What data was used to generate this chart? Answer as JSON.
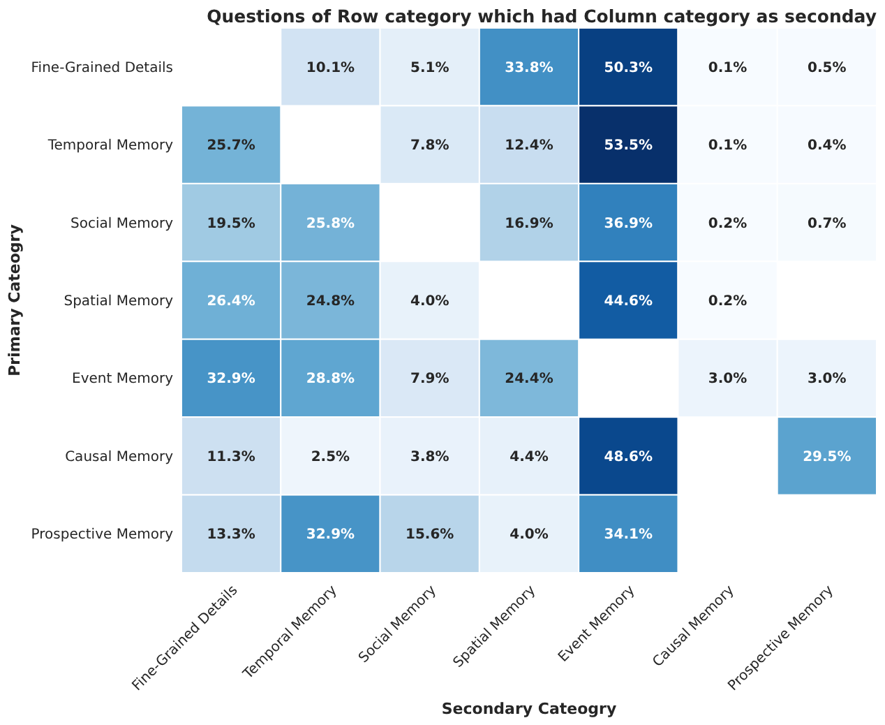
{
  "chart_data": {
    "type": "heatmap",
    "title": "Questions of Row category which had Column category as seconday",
    "xlabel": "Secondary Cateogry",
    "ylabel": "Primary Cateogry",
    "categories": [
      "Fine-Grained Details",
      "Temporal Memory",
      "Social Memory",
      "Spatial Memory",
      "Event Memory",
      "Causal Memory",
      "Prospective Memory"
    ],
    "y_categories": [
      "Fine-Grained Details",
      "Temporal Memory",
      "Social Memory",
      "Spatial Memory",
      "Event Memory",
      "Causal Memory",
      "Prospective Memory"
    ],
    "cells": [
      [
        null,
        10.1,
        5.1,
        33.8,
        50.3,
        0.1,
        0.5
      ],
      [
        25.7,
        null,
        7.8,
        12.4,
        53.5,
        0.1,
        0.4
      ],
      [
        19.5,
        25.8,
        null,
        16.9,
        36.9,
        0.2,
        0.7
      ],
      [
        26.4,
        24.8,
        4.0,
        null,
        44.6,
        0.2,
        null
      ],
      [
        32.9,
        28.8,
        7.9,
        24.4,
        null,
        3.0,
        3.0
      ],
      [
        11.3,
        2.5,
        3.8,
        4.4,
        48.6,
        null,
        29.5
      ],
      [
        13.3,
        32.9,
        15.6,
        4.0,
        34.1,
        null,
        null
      ]
    ],
    "cell_labels": [
      [
        null,
        "10.1%",
        "5.1%",
        "33.8%",
        "50.3%",
        "0.1%",
        "0.5%"
      ],
      [
        "25.7%",
        null,
        "7.8%",
        "12.4%",
        "53.5%",
        "0.1%",
        "0.4%"
      ],
      [
        "19.5%",
        "25.8%",
        null,
        "16.9%",
        "36.9%",
        "0.2%",
        "0.7%"
      ],
      [
        "26.4%",
        "24.8%",
        "4.0%",
        null,
        "44.6%",
        "0.2%",
        null
      ],
      [
        "32.9%",
        "28.8%",
        "7.9%",
        "24.4%",
        null,
        "3.0%",
        "3.0%"
      ],
      [
        "11.3%",
        "2.5%",
        "3.8%",
        "4.4%",
        "48.6%",
        null,
        "29.5%"
      ],
      [
        "13.3%",
        "32.9%",
        "15.6%",
        "4.0%",
        "34.1%",
        null,
        null
      ]
    ]
  }
}
